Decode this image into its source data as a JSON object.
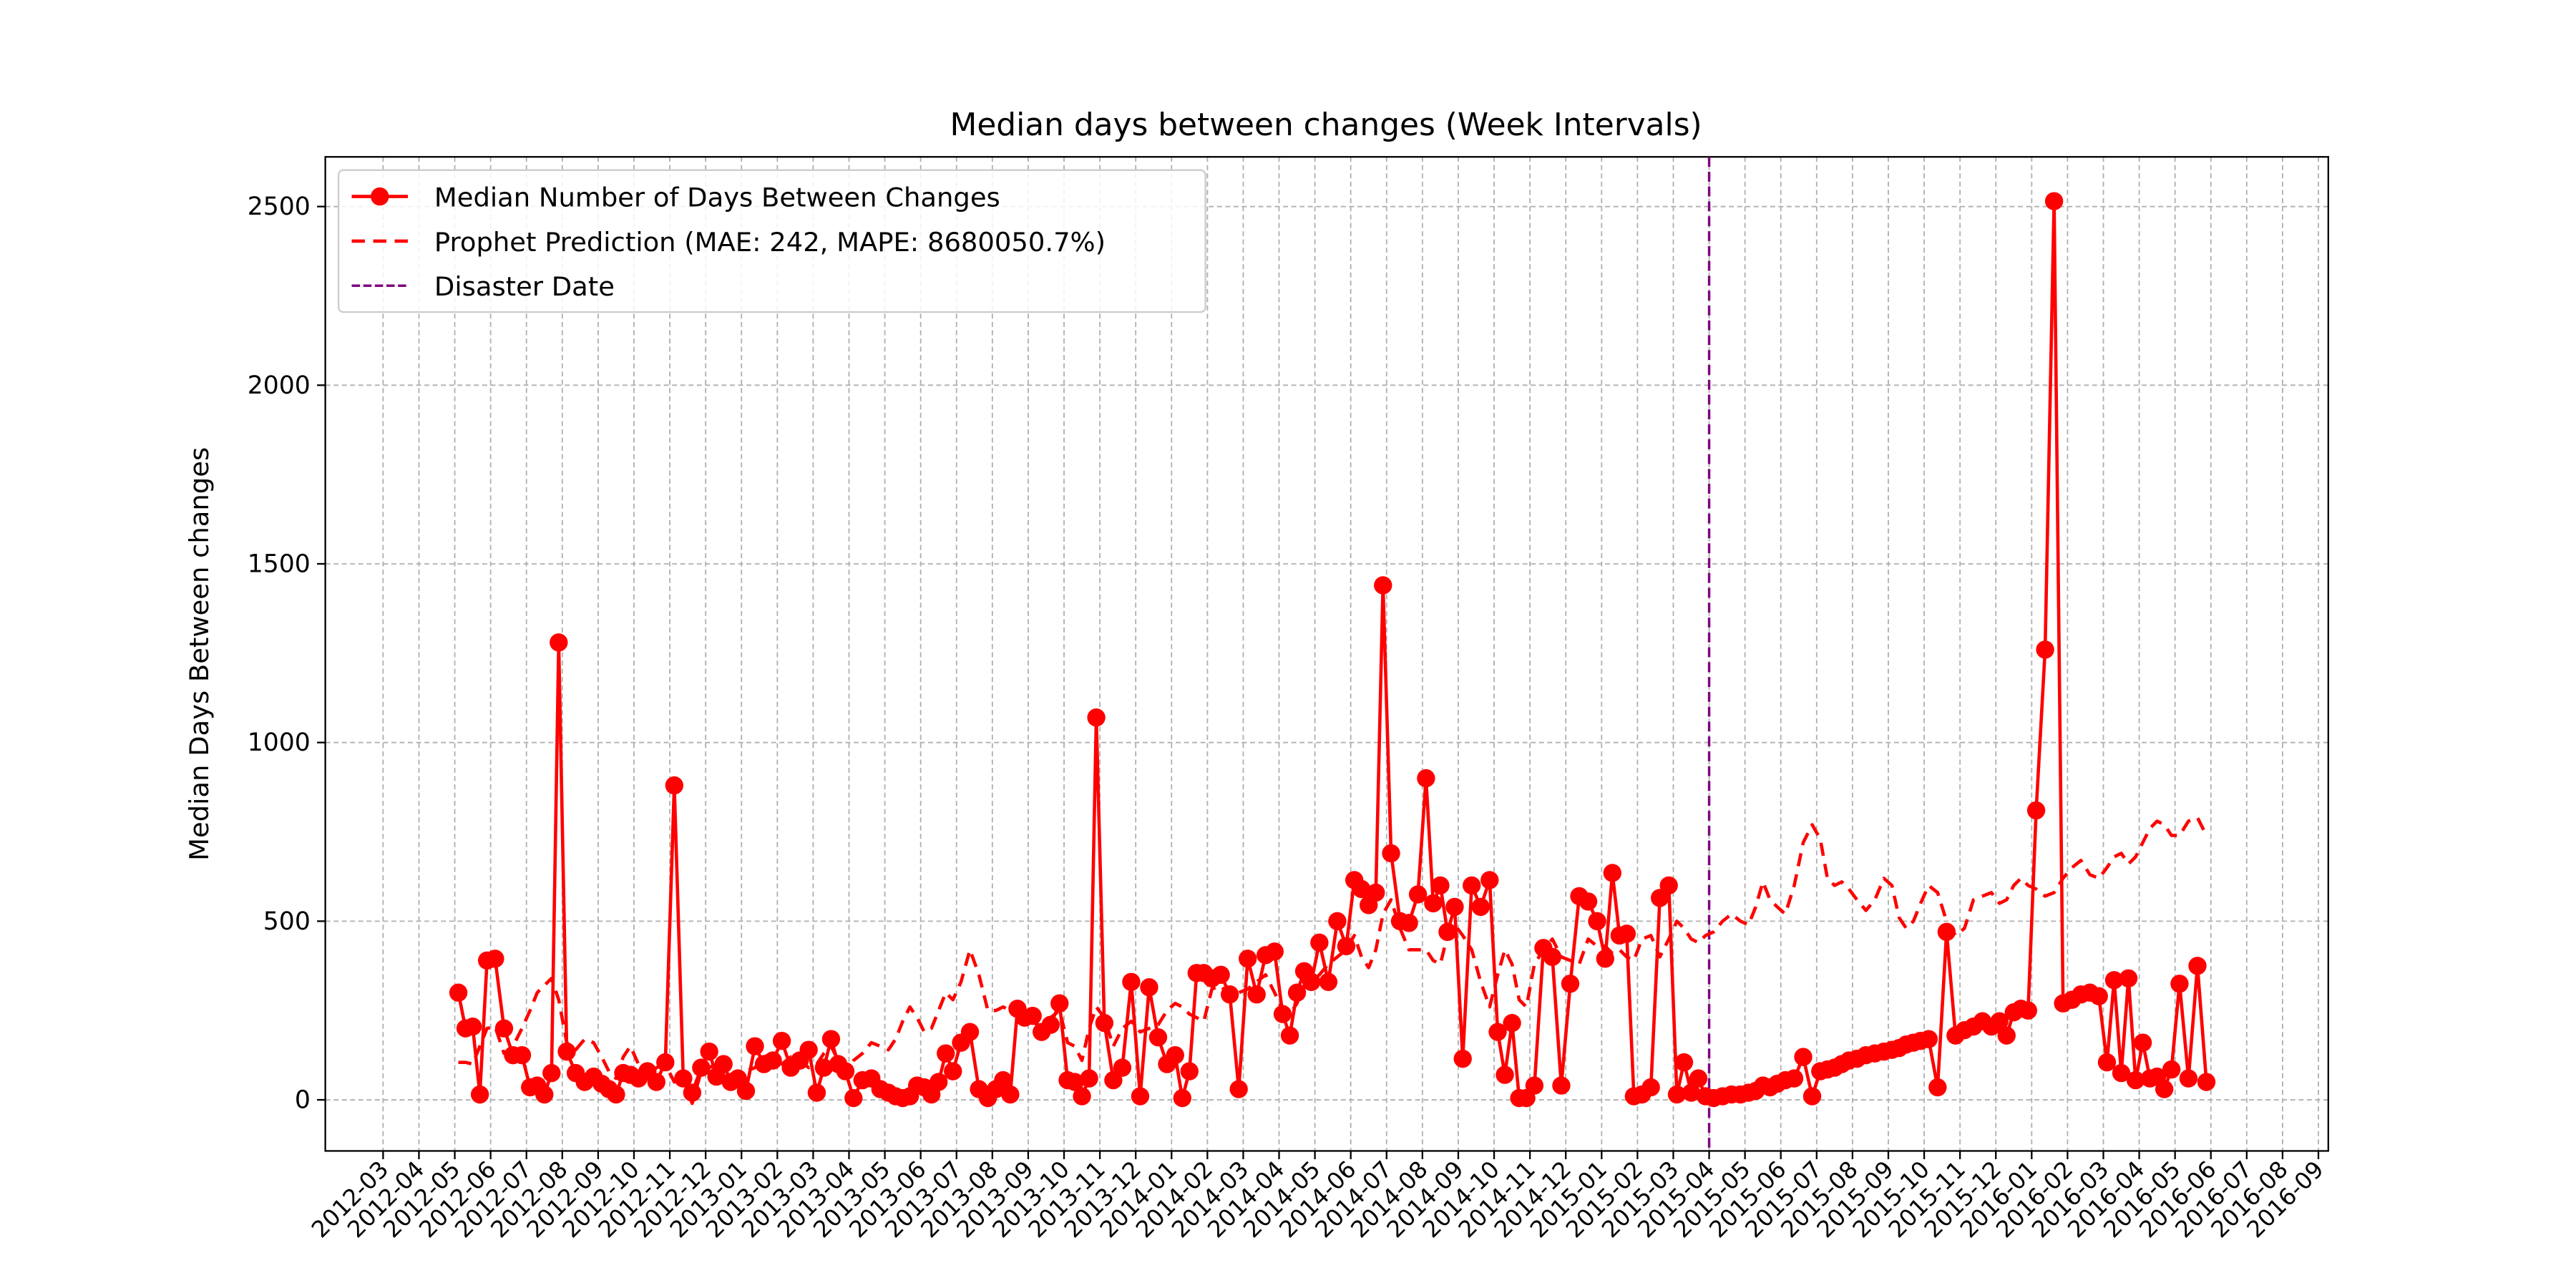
{
  "chart_data": {
    "type": "line",
    "title": "Median days between changes (Week Intervals)",
    "y_label": "Median Days Between changes",
    "x": [
      "2012-05",
      "2012-05",
      "2012-05",
      "2012-05",
      "2012-05",
      "2012-06",
      "2012-06",
      "2012-06",
      "2012-06",
      "2012-07",
      "2012-07",
      "2012-07",
      "2012-07",
      "2012-07",
      "2012-08",
      "2012-08",
      "2012-08",
      "2012-08",
      "2012-09",
      "2012-09",
      "2012-09",
      "2012-09",
      "2012-09",
      "2012-10",
      "2012-10",
      "2012-10",
      "2012-10",
      "2012-11",
      "2012-11",
      "2012-11",
      "2012-11",
      "2012-12",
      "2012-12",
      "2012-12",
      "2012-12",
      "2012-12",
      "2013-01",
      "2013-01",
      "2013-01",
      "2013-01",
      "2013-02",
      "2013-02",
      "2013-02",
      "2013-02",
      "2013-03",
      "2013-03",
      "2013-03",
      "2013-03",
      "2013-03",
      "2013-04",
      "2013-04",
      "2013-04",
      "2013-04",
      "2013-05",
      "2013-05",
      "2013-05",
      "2013-05",
      "2013-05",
      "2013-06",
      "2013-06",
      "2013-06",
      "2013-06",
      "2013-06",
      "2013-07",
      "2013-07",
      "2013-07",
      "2013-07",
      "2013-08",
      "2013-08",
      "2013-08",
      "2013-08",
      "2013-08",
      "2013-09",
      "2013-09",
      "2013-09",
      "2013-09",
      "2013-10",
      "2013-10",
      "2013-10",
      "2013-10",
      "2013-10",
      "2013-11",
      "2013-11",
      "2013-11",
      "2013-11",
      "2013-12",
      "2013-12",
      "2013-12",
      "2013-12",
      "2014-01",
      "2014-01",
      "2014-01",
      "2014-01",
      "2014-01",
      "2014-02",
      "2014-02",
      "2014-02",
      "2014-02",
      "2014-03",
      "2014-03",
      "2014-03",
      "2014-03",
      "2014-04",
      "2014-04",
      "2014-04",
      "2014-04",
      "2014-04",
      "2014-05",
      "2014-05",
      "2014-05",
      "2014-05",
      "2014-06",
      "2014-06",
      "2014-06",
      "2014-06",
      "2014-06",
      "2014-07",
      "2014-07",
      "2014-07",
      "2014-07",
      "2014-08",
      "2014-08",
      "2014-08",
      "2014-08",
      "2014-08",
      "2014-09",
      "2014-09",
      "2014-09",
      "2014-09",
      "2014-10",
      "2014-10",
      "2014-10",
      "2014-10",
      "2014-10",
      "2014-11",
      "2014-11",
      "2014-11",
      "2014-11",
      "2014-12",
      "2014-12",
      "2014-12",
      "2014-12",
      "2015-01",
      "2015-01",
      "2015-01",
      "2015-01",
      "2015-01",
      "2015-02",
      "2015-02",
      "2015-02",
      "2015-02",
      "2015-03",
      "2015-03",
      "2015-03",
      "2015-03",
      "2015-03",
      "2015-04",
      "2015-04",
      "2015-04",
      "2015-04",
      "2015-05",
      "2015-05",
      "2015-05",
      "2015-05",
      "2015-05",
      "2015-06",
      "2015-06",
      "2015-06",
      "2015-06",
      "2015-07",
      "2015-07",
      "2015-07",
      "2015-07",
      "2015-07",
      "2015-08",
      "2015-08",
      "2015-08",
      "2015-08",
      "2015-09",
      "2015-09",
      "2015-09",
      "2015-09",
      "2015-09",
      "2015-10",
      "2015-10",
      "2015-10",
      "2015-10",
      "2015-11",
      "2015-11",
      "2015-11",
      "2015-11",
      "2015-12",
      "2015-12",
      "2015-12",
      "2015-12",
      "2015-12",
      "2016-01",
      "2016-01",
      "2016-01",
      "2016-01",
      "2016-02",
      "2016-02",
      "2016-02",
      "2016-02",
      "2016-03",
      "2016-03",
      "2016-03",
      "2016-03",
      "2016-03",
      "2016-04",
      "2016-04",
      "2016-04",
      "2016-04",
      "2016-04",
      "2016-05",
      "2016-05",
      "2016-05",
      "2016-05"
    ],
    "series": [
      {
        "name": "Median Number of Days Between Changes",
        "color": "red",
        "marker": true,
        "dashed": false,
        "values": [
          300,
          200,
          205,
          15,
          390,
          395,
          200,
          125,
          125,
          35,
          40,
          15,
          75,
          1280,
          135,
          75,
          50,
          65,
          45,
          30,
          15,
          75,
          70,
          60,
          80,
          50,
          105,
          880,
          60,
          20,
          90,
          135,
          65,
          100,
          50,
          60,
          25,
          150,
          100,
          110,
          165,
          90,
          110,
          140,
          20,
          90,
          170,
          100,
          80,
          5,
          55,
          60,
          30,
          20,
          10,
          5,
          10,
          40,
          35,
          15,
          50,
          130,
          80,
          160,
          190,
          30,
          5,
          30,
          55,
          15,
          255,
          230,
          235,
          190,
          210,
          270,
          55,
          50,
          10,
          60,
          1070,
          215,
          55,
          90,
          330,
          10,
          315,
          175,
          100,
          125,
          5,
          80,
          355,
          355,
          340,
          350,
          295,
          30,
          395,
          295,
          405,
          415,
          240,
          180,
          300,
          360,
          330,
          440,
          330,
          500,
          430,
          615,
          590,
          545,
          580,
          1440,
          690,
          500,
          495,
          575,
          900,
          550,
          600,
          470,
          540,
          115,
          600,
          540,
          615,
          190,
          70,
          215,
          5,
          5,
          40,
          425,
          400,
          40,
          325,
          570,
          555,
          500,
          395,
          635,
          460,
          465,
          10,
          15,
          35,
          565,
          600,
          15,
          105,
          20,
          60,
          10,
          5,
          10,
          15,
          15,
          20,
          25,
          40,
          35,
          45,
          55,
          60,
          120,
          10,
          80,
          85,
          90,
          100,
          110,
          115,
          125,
          130,
          135,
          140,
          145,
          155,
          160,
          165,
          170,
          35,
          470,
          180,
          195,
          205,
          220,
          205,
          220,
          180,
          245,
          255,
          250,
          810,
          1260,
          2515,
          270,
          280,
          295,
          300,
          290,
          105,
          335,
          75,
          340,
          55,
          160,
          60,
          65,
          30,
          85,
          325,
          60,
          375,
          50
        ]
      },
      {
        "name": "Prophet Prediction (MAE: 242, MAPE: 8680050.7%)",
        "color": "red",
        "marker": false,
        "dashed": true,
        "values": [
          105,
          105,
          100,
          150,
          200,
          205,
          130,
          150,
          200,
          250,
          300,
          320,
          340,
          280,
          160,
          140,
          170,
          160,
          120,
          80,
          60,
          120,
          150,
          100,
          60,
          90,
          100,
          50,
          60,
          -10,
          80,
          90,
          100,
          120,
          60,
          60,
          80,
          90,
          120,
          130,
          100,
          120,
          110,
          90,
          100,
          130,
          150,
          110,
          80,
          110,
          130,
          160,
          150,
          140,
          170,
          220,
          260,
          230,
          190,
          200,
          250,
          300,
          280,
          330,
          420,
          350,
          250,
          250,
          260,
          250,
          240,
          230,
          220,
          200,
          230,
          250,
          160,
          150,
          110,
          200,
          260,
          230,
          150,
          200,
          220,
          190,
          200,
          210,
          250,
          270,
          260,
          240,
          230,
          220,
          310,
          320,
          290,
          300,
          310,
          330,
          350,
          300,
          250,
          240,
          270,
          320,
          330,
          350,
          380,
          400,
          420,
          460,
          400,
          370,
          420,
          520,
          560,
          480,
          420,
          420,
          420,
          390,
          380,
          460,
          490,
          460,
          420,
          330,
          260,
          350,
          420,
          380,
          280,
          260,
          380,
          420,
          450,
          400,
          390,
          380,
          450,
          430,
          430,
          410,
          420,
          400,
          390,
          450,
          460,
          400,
          450,
          500,
          480,
          450,
          440,
          460,
          470,
          500,
          520,
          500,
          490,
          540,
          610,
          560,
          540,
          520,
          600,
          720,
          770,
          730,
          620,
          600,
          610,
          590,
          560,
          530,
          560,
          620,
          600,
          510,
          480,
          500,
          550,
          600,
          580,
          500,
          460,
          480,
          560,
          570,
          580,
          550,
          560,
          600,
          620,
          600,
          590,
          570,
          580,
          620,
          650,
          670,
          630,
          620,
          650,
          680,
          690,
          660,
          680,
          720,
          760,
          780,
          770,
          740,
          740,
          780,
          790,
          740
        ]
      }
    ],
    "disaster": {
      "name": "Disaster Date",
      "x": "2015-04",
      "color": "purple"
    },
    "xlim": [
      "2012-03",
      "2016-09"
    ],
    "xticks": [
      "2012-03",
      "2012-04",
      "2012-05",
      "2012-06",
      "2012-07",
      "2012-08",
      "2012-09",
      "2012-10",
      "2012-11",
      "2012-12",
      "2013-01",
      "2013-02",
      "2013-03",
      "2013-04",
      "2013-05",
      "2013-06",
      "2013-07",
      "2013-08",
      "2013-09",
      "2013-10",
      "2013-11",
      "2013-12",
      "2014-01",
      "2014-02",
      "2014-03",
      "2014-04",
      "2014-05",
      "2014-06",
      "2014-07",
      "2014-08",
      "2014-09",
      "2014-10",
      "2014-11",
      "2014-12",
      "2015-01",
      "2015-02",
      "2015-03",
      "2015-04",
      "2015-05",
      "2015-06",
      "2015-07",
      "2015-08",
      "2015-09",
      "2015-10",
      "2015-11",
      "2015-12",
      "2016-01",
      "2016-02",
      "2016-03",
      "2016-04",
      "2016-05",
      "2016-06",
      "2016-07",
      "2016-08",
      "2016-09"
    ],
    "ylim": [
      -143,
      2639
    ],
    "yticks": [
      0,
      500,
      1000,
      1500,
      2000,
      2500
    ],
    "grid": true,
    "legend": "upper left"
  }
}
